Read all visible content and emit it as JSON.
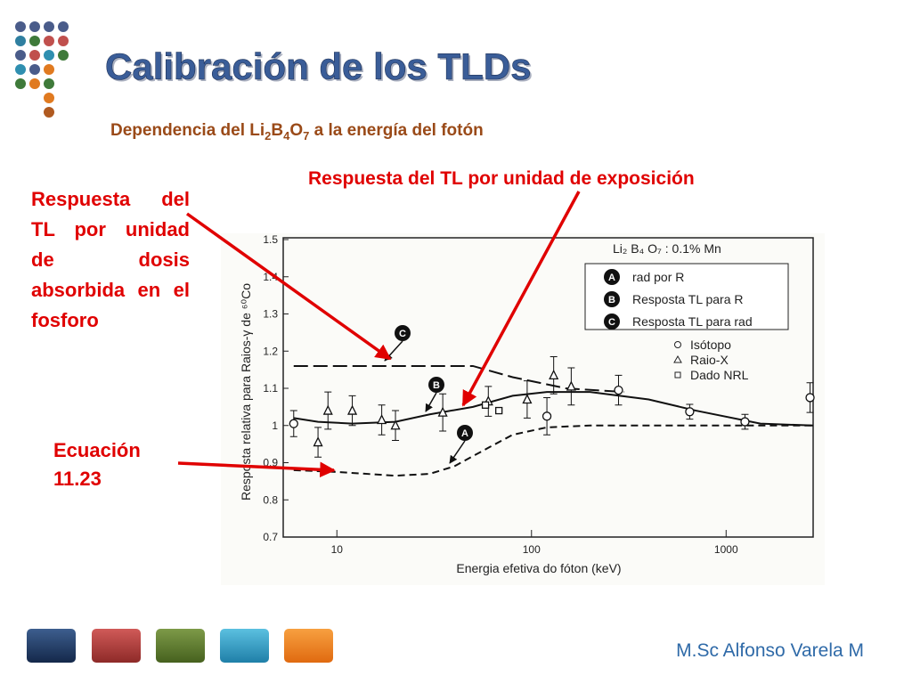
{
  "slide": {
    "title": "Calibración de los TLDs",
    "subtitle_parts": [
      "Dependencia del Li",
      "2",
      "B",
      "4",
      "O",
      "7",
      " a la energía del fotón"
    ],
    "annotation_top": "Respuesta del TL por unidad de exposición",
    "annotation_left": "Respuesta del TL por unidad de dosis absorbida en el fosforo",
    "annotation_equation": "Ecuación 11.23",
    "footer": "M.Sc Alfonso Varela M"
  },
  "chart_data": {
    "type": "line",
    "x_label": "Energia efetiva do fóton (keV)",
    "y_label": "Resposta relativa para Raios-γ de ⁶⁰Co",
    "legend_title": "Li₂ B₄ O₇ : 0.1% Mn",
    "xlim": [
      5.3,
      2800
    ],
    "xticks": [
      10,
      100,
      1000
    ],
    "log_x": true,
    "ylim": [
      0.7,
      1.5
    ],
    "yticks": [
      0.7,
      0.8,
      0.9,
      1.0,
      1.1,
      1.2,
      1.3,
      1.4,
      1.5
    ],
    "series": [
      {
        "name": "rad por R",
        "label": "A",
        "style": "dashed",
        "color": "#111111",
        "x": [
          6,
          10,
          20,
          30,
          40,
          60,
          80,
          120,
          200,
          1000,
          2800
        ],
        "values": [
          0.88,
          0.875,
          0.865,
          0.87,
          0.89,
          0.94,
          0.975,
          0.995,
          1.0,
          1.0,
          1.0
        ]
      },
      {
        "name": "Resposta TL para R",
        "label": "B",
        "style": "solid",
        "color": "#111111",
        "x": [
          6,
          8,
          12,
          20,
          30,
          50,
          80,
          120,
          200,
          400,
          700,
          1500,
          2800
        ],
        "values": [
          1.02,
          1.01,
          1.005,
          1.01,
          1.03,
          1.05,
          1.08,
          1.09,
          1.09,
          1.07,
          1.04,
          1.005,
          1.0
        ]
      },
      {
        "name": "Resposta TL para rad",
        "label": "C",
        "style": "longdash",
        "color": "#111111",
        "x": [
          6,
          20,
          50,
          80,
          150,
          300
        ],
        "values": [
          1.16,
          1.16,
          1.16,
          1.13,
          1.1,
          1.09
        ]
      },
      {
        "name": "Isótopo",
        "marker": "circle",
        "color": "#111111",
        "x": [
          6,
          120,
          280,
          650,
          1250,
          2700
        ],
        "values": [
          1.005,
          1.025,
          1.095,
          1.037,
          1.01,
          1.075
        ],
        "errors": [
          0.035,
          0.05,
          0.04,
          0.02,
          0.02,
          0.04
        ]
      },
      {
        "name": "Raio-X",
        "marker": "triangle",
        "color": "#111111",
        "x": [
          8,
          9,
          12,
          17,
          20,
          35,
          60,
          95,
          130,
          160
        ],
        "values": [
          0.955,
          1.04,
          1.04,
          1.015,
          1.0,
          1.035,
          1.065,
          1.07,
          1.135,
          1.105
        ],
        "errors": [
          0.04,
          0.05,
          0.04,
          0.04,
          0.04,
          0.05,
          0.04,
          0.05,
          0.05,
          0.05
        ]
      },
      {
        "name": "Dado NRL",
        "marker": "square",
        "color": "#111111",
        "x": [
          58,
          68
        ],
        "values": [
          1.055,
          1.04
        ]
      }
    ]
  }
}
